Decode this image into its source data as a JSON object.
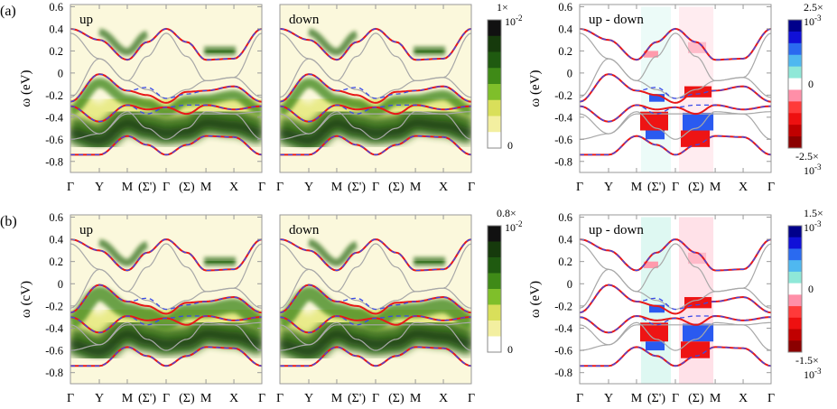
{
  "chart_data": [
    {
      "type": "heatmap",
      "row_label": "(a)",
      "ylabel": "ω (eV)",
      "ylabel_b": "ω (cV)",
      "ylim": [
        -0.9,
        0.62
      ],
      "yticks": [
        "0.6",
        "0.4",
        "0.2",
        "0",
        "-0.2",
        "-0.4",
        "-0.6",
        "-0.8"
      ],
      "ytick_values": [
        0.6,
        0.4,
        0.2,
        0,
        -0.2,
        -0.4,
        -0.6,
        -0.8
      ],
      "xticks": [
        "Γ",
        "Y",
        "M",
        "(Σ')",
        "Γ",
        "(Σ)",
        "M",
        "X",
        "Γ"
      ],
      "panels": [
        {
          "text": "up",
          "kind": "spectral"
        },
        {
          "text": "down",
          "kind": "spectral"
        },
        {
          "text": "up - down",
          "kind": "difference"
        }
      ],
      "colorbar_spectral": {
        "mantissa": "1×",
        "base": "10",
        "exponent": "-2",
        "min": "0",
        "colors": [
          "#ffffff",
          "#f3efa0",
          "#d9df5a",
          "#7fbf2a",
          "#3f8a17",
          "#1f5a10",
          "#163a0c",
          "#111111"
        ]
      },
      "colorbar_difference": {
        "top_mantissa": "2.5×",
        "top_base": "10",
        "top_exponent": "-3",
        "mid": "0",
        "bottom_mantissa": "-2.5×",
        "bottom_base": "10",
        "bottom_exponent": "-3",
        "colors": [
          "#8b0000",
          "#c00000",
          "#ee1010",
          "#ff3a3a",
          "#ff8fa8",
          "#ffffff",
          "#8fe8d8",
          "#4fb8f0",
          "#2a6af0",
          "#1010d8",
          "#00008b"
        ]
      }
    },
    {
      "type": "heatmap",
      "row_label": "(b)",
      "ylabel": "ω (cV)",
      "ylim": [
        -0.9,
        0.62
      ],
      "yticks": [
        "0.6",
        "0.4",
        "0.2",
        "0",
        "-0.2",
        "-0.4",
        "-0.6",
        "-0.8"
      ],
      "ytick_values": [
        0.6,
        0.4,
        0.2,
        0,
        -0.2,
        -0.4,
        -0.6,
        -0.8
      ],
      "xticks": [
        "Γ",
        "Y",
        "M",
        "(Σ')",
        "Γ",
        "(Σ)",
        "M",
        "X",
        "Γ"
      ],
      "panels": [
        {
          "text": "up",
          "kind": "spectral"
        },
        {
          "text": "down",
          "kind": "spectral"
        },
        {
          "text": "up - down",
          "kind": "difference"
        }
      ],
      "ylabel_right": "ω (eV)",
      "colorbar_spectral": {
        "mantissa": "0.8×",
        "base": "10",
        "exponent": "-2",
        "min": "0",
        "colors": [
          "#ffffff",
          "#f3efa0",
          "#d9df5a",
          "#7fbf2a",
          "#3f8a17",
          "#1f5a10",
          "#163a0c",
          "#111111"
        ]
      },
      "colorbar_difference": {
        "top_mantissa": "1.5×",
        "top_base": "10",
        "top_exponent": "-3",
        "mid": "0",
        "bottom_mantissa": "-1.5×",
        "bottom_base": "10",
        "bottom_exponent": "-3",
        "colors": [
          "#8b0000",
          "#c00000",
          "#ee1010",
          "#ff3a3a",
          "#ff8fa8",
          "#ffffff",
          "#8fe8d8",
          "#4fb8f0",
          "#2a6af0",
          "#1010d8",
          "#00008b"
        ]
      }
    }
  ],
  "bands": {
    "red_solid": [
      [
        0.4,
        0.3,
        0.12,
        0.28,
        0.4,
        0.28,
        0.12,
        0.13,
        0.4
      ],
      [
        -0.26,
        -0.01,
        -0.16,
        -0.2,
        -0.27,
        -0.17,
        -0.16,
        -0.12,
        -0.26
      ],
      [
        -0.3,
        -0.44,
        -0.29,
        -0.33,
        -0.31,
        -0.37,
        -0.29,
        -0.33,
        -0.3
      ],
      [
        -0.74,
        -0.74,
        -0.57,
        -0.65,
        -0.74,
        -0.65,
        -0.57,
        -0.58,
        -0.74
      ]
    ],
    "blue_dashed": [
      [
        0.4,
        0.3,
        0.12,
        0.28,
        0.4,
        0.28,
        0.12,
        0.13,
        0.4
      ],
      [
        -0.26,
        -0.01,
        -0.16,
        -0.13,
        -0.23,
        -0.19,
        -0.16,
        -0.12,
        -0.26
      ],
      [
        -0.3,
        -0.44,
        -0.29,
        -0.37,
        -0.31,
        -0.29,
        -0.29,
        -0.33,
        -0.3
      ],
      [
        -0.74,
        -0.74,
        -0.57,
        -0.65,
        -0.74,
        -0.65,
        -0.57,
        -0.58,
        -0.74
      ]
    ],
    "gray": [
      [
        0.36,
        0.13,
        -0.07,
        0.15,
        0.36,
        0.15,
        -0.07,
        -0.04,
        0.36
      ],
      [
        -0.22,
        0.13,
        -0.07,
        -0.15,
        -0.23,
        -0.15,
        -0.07,
        -0.04,
        -0.22
      ],
      [
        -0.37,
        -0.55,
        -0.35,
        -0.5,
        -0.6,
        -0.5,
        -0.35,
        -0.37,
        -0.6
      ],
      [
        -0.6,
        -0.55,
        -0.37,
        -0.37,
        -0.37,
        -0.37,
        -0.37,
        -0.37,
        -0.35
      ]
    ]
  }
}
